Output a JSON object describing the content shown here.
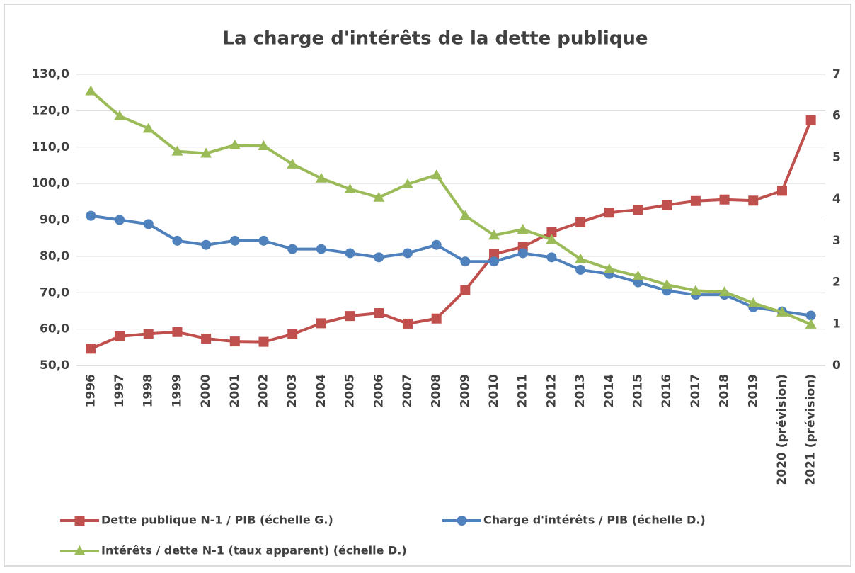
{
  "chart_data": {
    "type": "line",
    "title": "La charge d'intérêts de la dette publique",
    "categories": [
      "1996",
      "1997",
      "1998",
      "1999",
      "2000",
      "2001",
      "2002",
      "2003",
      "2004",
      "2005",
      "2006",
      "2007",
      "2008",
      "2009",
      "2010",
      "2011",
      "2012",
      "2013",
      "2014",
      "2015",
      "2016",
      "2017",
      "2018",
      "2019",
      "2020 (prévision)",
      "2021 (prévision)"
    ],
    "series": [
      {
        "name": "Dette publique N-1 / PIB (échelle G.)",
        "color": "#c0504d",
        "marker": "square",
        "axis": "y",
        "values": [
          54.6,
          58.0,
          58.7,
          59.2,
          57.4,
          56.6,
          56.5,
          58.6,
          61.6,
          63.6,
          64.4,
          61.5,
          62.9,
          70.7,
          80.6,
          82.6,
          86.6,
          89.4,
          92.0,
          92.8,
          94.1,
          95.2,
          95.6,
          95.3,
          98.0,
          117.4
        ]
      },
      {
        "name": "Charge d'intérêts / PIB (échelle D.)",
        "color": "#4f81bd",
        "marker": "circle",
        "axis": "y2",
        "values": [
          3.6,
          3.5,
          3.4,
          3.0,
          2.9,
          3.0,
          3.0,
          2.8,
          2.8,
          2.7,
          2.6,
          2.7,
          2.9,
          2.5,
          2.5,
          2.7,
          2.6,
          2.3,
          2.2,
          2.0,
          1.8,
          1.7,
          1.7,
          1.4,
          1.3,
          1.2
        ]
      },
      {
        "name": "Intérêts / dette N-1 (taux apparent) (échelle D.)",
        "color": "#9bbb59",
        "marker": "triangle",
        "axis": "y2",
        "values": [
          6.6,
          6.0,
          5.7,
          5.15,
          5.1,
          5.3,
          5.28,
          4.84,
          4.5,
          4.24,
          4.04,
          4.36,
          4.58,
          3.6,
          3.13,
          3.27,
          3.03,
          2.56,
          2.32,
          2.15,
          1.94,
          1.8,
          1.77,
          1.5,
          1.28,
          0.99
        ]
      }
    ],
    "ylim": [
      50,
      130
    ],
    "yticks": [
      {
        "value": 50,
        "label": "50,0"
      },
      {
        "value": 60,
        "label": "60,0"
      },
      {
        "value": 70,
        "label": "70,0"
      },
      {
        "value": 80,
        "label": "80,0"
      },
      {
        "value": 90,
        "label": "90,0"
      },
      {
        "value": 100,
        "label": "100,0"
      },
      {
        "value": 110,
        "label": "110,0"
      },
      {
        "value": 120,
        "label": "120,0"
      },
      {
        "value": 130,
        "label": "130,0"
      }
    ],
    "y2lim": [
      0,
      7
    ],
    "y2ticks": [
      0,
      1,
      2,
      3,
      4,
      5,
      6,
      7
    ],
    "grid": true,
    "legend": "bottom"
  }
}
